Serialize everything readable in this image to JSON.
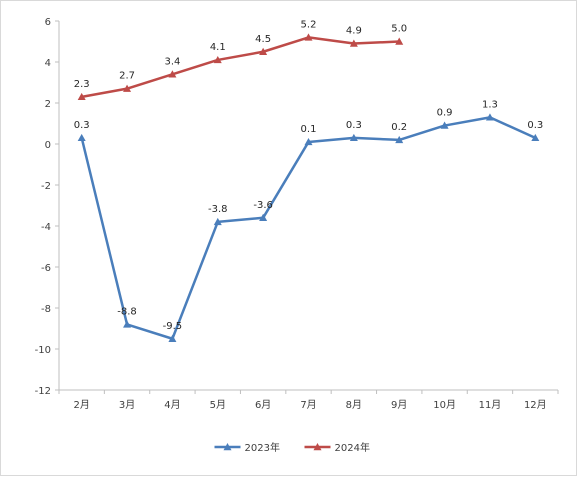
{
  "chart_data": {
    "type": "line",
    "title": "",
    "xlabel": "",
    "ylabel": "",
    "categories": [
      "2月",
      "3月",
      "4月",
      "5月",
      "6月",
      "7月",
      "8月",
      "9月",
      "10月",
      "11月",
      "12月"
    ],
    "ylim": [
      -12,
      6
    ],
    "yticks": [
      6,
      4,
      2,
      0,
      -2,
      -4,
      -6,
      -8,
      -10,
      -12
    ],
    "grid": false,
    "legend_position": "bottom",
    "series": [
      {
        "name": "2023年",
        "color": "#4a7ebb",
        "marker": "triangle",
        "values": [
          0.3,
          -8.8,
          -9.5,
          -3.8,
          -3.6,
          0.1,
          0.3,
          0.2,
          0.9,
          1.3,
          0.3
        ]
      },
      {
        "name": "2024年",
        "color": "#be4b48",
        "marker": "triangle",
        "values": [
          2.3,
          2.7,
          3.4,
          4.1,
          4.5,
          5.2,
          4.9,
          5.0,
          null,
          null,
          null
        ]
      }
    ]
  }
}
